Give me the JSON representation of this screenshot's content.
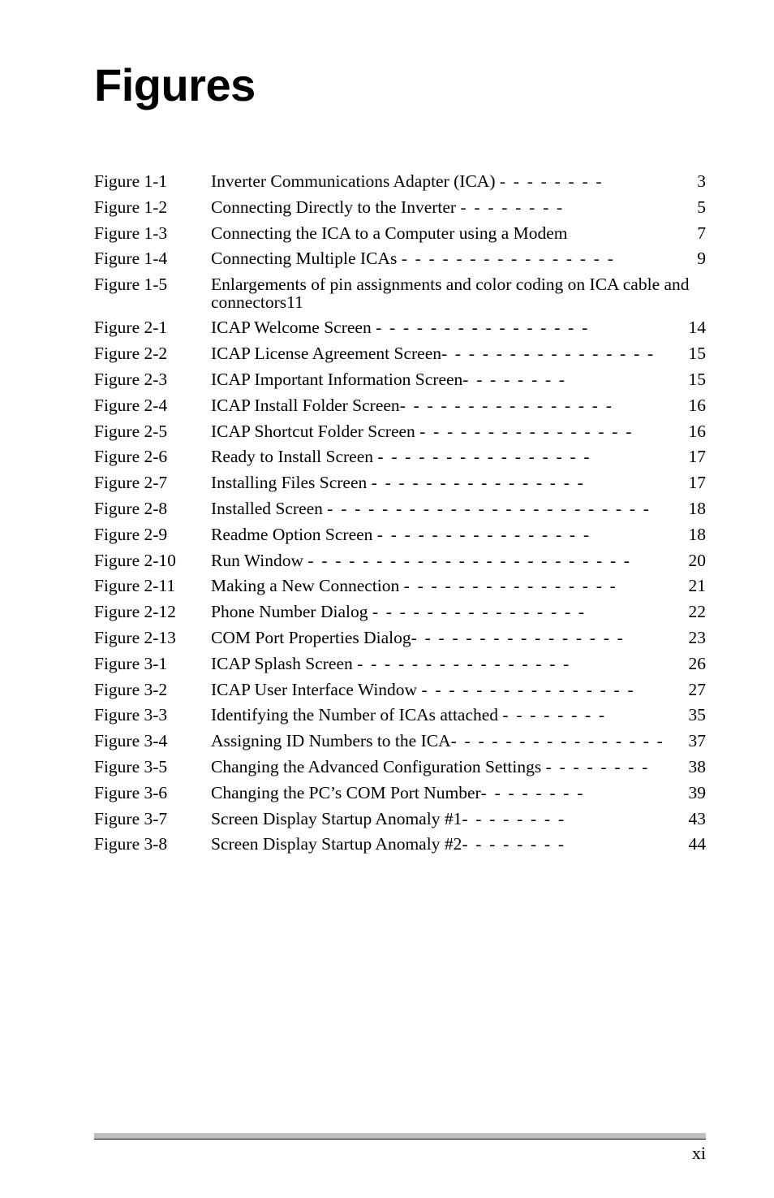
{
  "heading": "Figures",
  "page_number": "xi",
  "dash_char": "-",
  "entries": [
    {
      "label": "Figure 1-1",
      "title": "Inverter Communications Adapter (ICA) ",
      "page": "3"
    },
    {
      "label": "Figure 1-2",
      "title": "Connecting Directly to the Inverter ",
      "page": "5"
    },
    {
      "label": "Figure 1-3",
      "title": "Connecting the ICA to a Computer using a Modem ",
      "page": "7"
    },
    {
      "label": "Figure 1-4",
      "title": "Connecting Multiple ICAs ",
      "page": "9"
    },
    {
      "label": "Figure 1-5",
      "title": "Enlargements of pin assignments and color coding on ICA cable and connectors11",
      "page": ""
    },
    {
      "label": "Figure 2-1",
      "title": "ICAP Welcome Screen ",
      "page": "14"
    },
    {
      "label": "Figure 2-2",
      "title": "ICAP License Agreement Screen",
      "page": "15"
    },
    {
      "label": "Figure 2-3",
      "title": "ICAP Important Information Screen",
      "page": "15"
    },
    {
      "label": "Figure 2-4",
      "title": "ICAP Install Folder Screen",
      "page": "16"
    },
    {
      "label": "Figure 2-5",
      "title": "ICAP Shortcut Folder Screen ",
      "page": "16"
    },
    {
      "label": "Figure 2-6",
      "title": "Ready to Install Screen ",
      "page": "17"
    },
    {
      "label": "Figure 2-7",
      "title": "Installing Files Screen ",
      "page": "17"
    },
    {
      "label": "Figure 2-8",
      "title": "Installed Screen ",
      "page": "18"
    },
    {
      "label": "Figure 2-9",
      "title": "Readme Option Screen ",
      "page": "18"
    },
    {
      "label": "Figure 2-10",
      "title": "Run Window ",
      "page": "20"
    },
    {
      "label": "Figure 2-11",
      "title": "Making a New Connection ",
      "page": "21"
    },
    {
      "label": "Figure 2-12",
      "title": "Phone Number Dialog ",
      "page": "22"
    },
    {
      "label": "Figure 2-13",
      "title": "COM Port Properties Dialog",
      "page": "23"
    },
    {
      "label": "Figure 3-1",
      "title": "ICAP Splash Screen ",
      "page": "26"
    },
    {
      "label": "Figure 3-2",
      "title": "ICAP User Interface Window ",
      "page": "27"
    },
    {
      "label": "Figure 3-3",
      "title": "Identifying the Number of ICAs attached ",
      "page": "35"
    },
    {
      "label": "Figure 3-4",
      "title": "Assigning ID Numbers to the ICA",
      "page": "37"
    },
    {
      "label": "Figure 3-5",
      "title": "Changing the Advanced Configuration Settings ",
      "page": "38"
    },
    {
      "label": "Figure 3-6",
      "title": "Changing the PC’s COM Port Number",
      "page": "39"
    },
    {
      "label": "Figure 3-7",
      "title": "Screen Display Startup Anomaly #1",
      "page": "43"
    },
    {
      "label": "Figure 3-8",
      "title": "Screen Display Startup Anomaly #2",
      "page": "44"
    }
  ]
}
